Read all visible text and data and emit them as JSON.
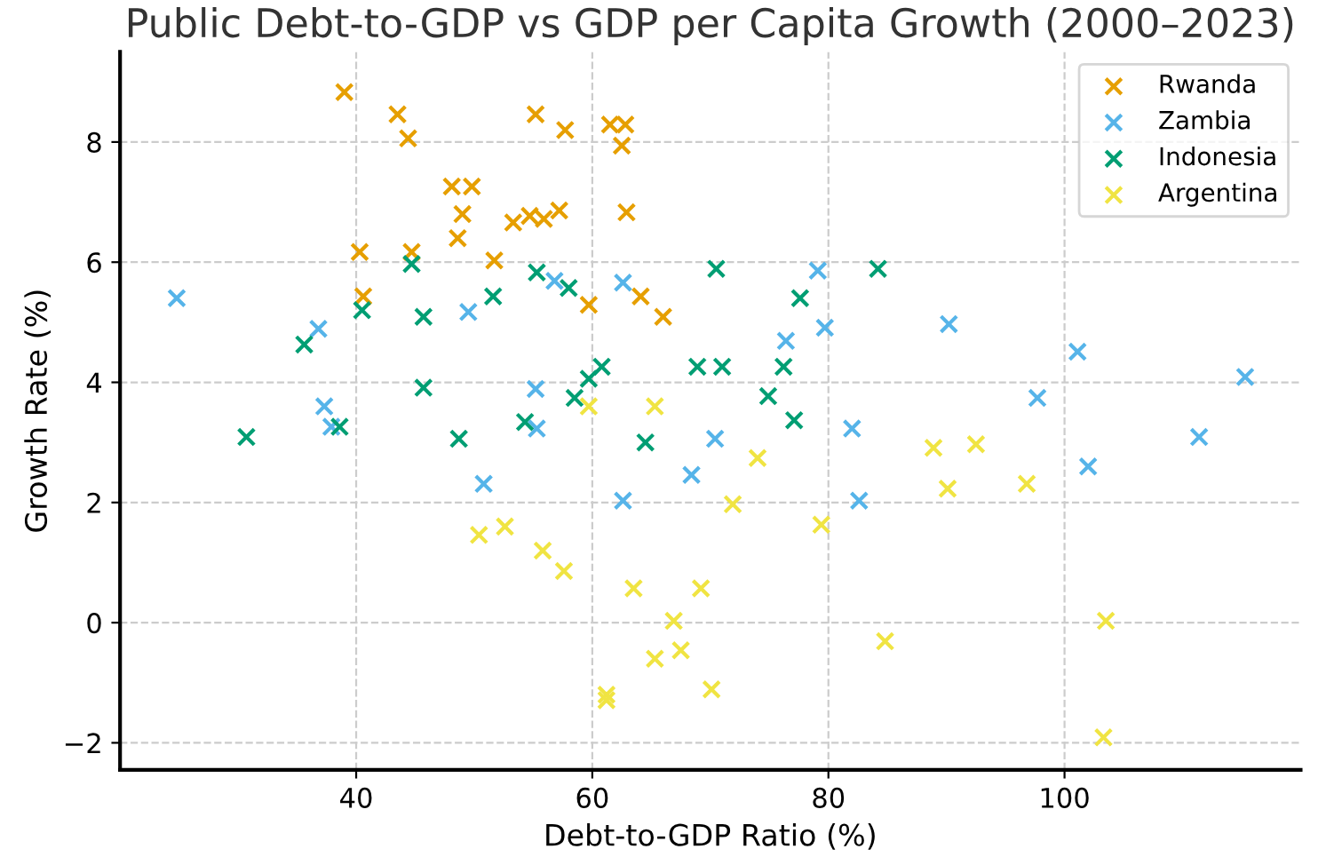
{
  "chart_data": {
    "type": "scatter",
    "title": "Public Debt-to-GDP vs GDP per Capita Growth (2000–2023)",
    "xlabel": "Debt-to-GDP Ratio (%)",
    "ylabel": "Growth Rate (%)",
    "xlim": [
      20,
      120
    ],
    "ylim": [
      -2.45,
      9.5
    ],
    "xticks": [
      40,
      60,
      80,
      100
    ],
    "yticks": [
      -2,
      0,
      2,
      4,
      6,
      8
    ],
    "grid": true,
    "legend": "top right",
    "marker": "cross",
    "series": [
      {
        "name": "Rwanda",
        "color": "#e69f00",
        "x": [
          39.0,
          43.5,
          44.4,
          55.2,
          57.7,
          61.5,
          62.8,
          62.5,
          48.1,
          49.8,
          49.0,
          48.6,
          53.3,
          54.7,
          55.9,
          57.2,
          62.9,
          40.3,
          44.7,
          51.7,
          59.7,
          64.1,
          66.0,
          40.6
        ],
        "values": [
          8.83,
          8.46,
          8.06,
          8.46,
          8.2,
          8.29,
          8.29,
          7.94,
          7.26,
          7.26,
          6.8,
          6.4,
          6.66,
          6.77,
          6.72,
          6.86,
          6.83,
          6.17,
          6.17,
          6.03,
          5.29,
          5.43,
          5.09,
          5.43
        ]
      },
      {
        "name": "Zambia",
        "color": "#56b4e9",
        "x": [
          24.8,
          36.8,
          49.5,
          56.8,
          62.6,
          79.1,
          79.7,
          76.4,
          90.2,
          101.1,
          115.3,
          97.7,
          111.4,
          102.0,
          55.2,
          55.3,
          70.4,
          68.4,
          62.6,
          82.0,
          82.6,
          37.3,
          37.9,
          50.8
        ],
        "values": [
          5.4,
          4.89,
          5.17,
          5.69,
          5.66,
          5.86,
          4.91,
          4.69,
          4.97,
          4.51,
          4.09,
          3.74,
          3.09,
          2.6,
          3.89,
          3.23,
          3.06,
          2.46,
          2.03,
          3.23,
          2.03,
          3.6,
          3.26,
          2.31
        ]
      },
      {
        "name": "Indonesia",
        "color": "#009e73",
        "x": [
          44.7,
          40.5,
          45.7,
          51.6,
          55.3,
          58.0,
          70.5,
          84.2,
          77.6,
          68.9,
          71.0,
          76.2,
          60.8,
          59.7,
          58.5,
          74.9,
          77.1,
          64.5,
          54.3,
          45.7,
          30.7,
          38.6,
          48.7,
          35.6
        ],
        "values": [
          5.97,
          5.2,
          5.09,
          5.43,
          5.83,
          5.57,
          5.89,
          5.89,
          5.4,
          4.26,
          4.26,
          4.26,
          4.26,
          4.06,
          3.74,
          3.77,
          3.37,
          3.0,
          3.34,
          3.91,
          3.09,
          3.26,
          3.06,
          4.63
        ]
      },
      {
        "name": "Argentina",
        "color": "#f0e442",
        "x": [
          59.7,
          65.3,
          74.0,
          71.9,
          79.4,
          55.8,
          57.6,
          63.5,
          69.2,
          66.9,
          65.3,
          67.5,
          70.1,
          61.2,
          61.2,
          84.8,
          50.4,
          52.6,
          88.9,
          92.5,
          90.1,
          96.8,
          103.5,
          103.3
        ],
        "values": [
          3.6,
          3.6,
          2.74,
          1.97,
          1.63,
          1.2,
          0.86,
          0.57,
          0.57,
          0.03,
          -0.6,
          -0.46,
          -1.11,
          -1.2,
          -1.29,
          -0.31,
          1.46,
          1.6,
          2.91,
          2.97,
          2.23,
          2.31,
          0.03,
          -1.91
        ]
      }
    ]
  }
}
